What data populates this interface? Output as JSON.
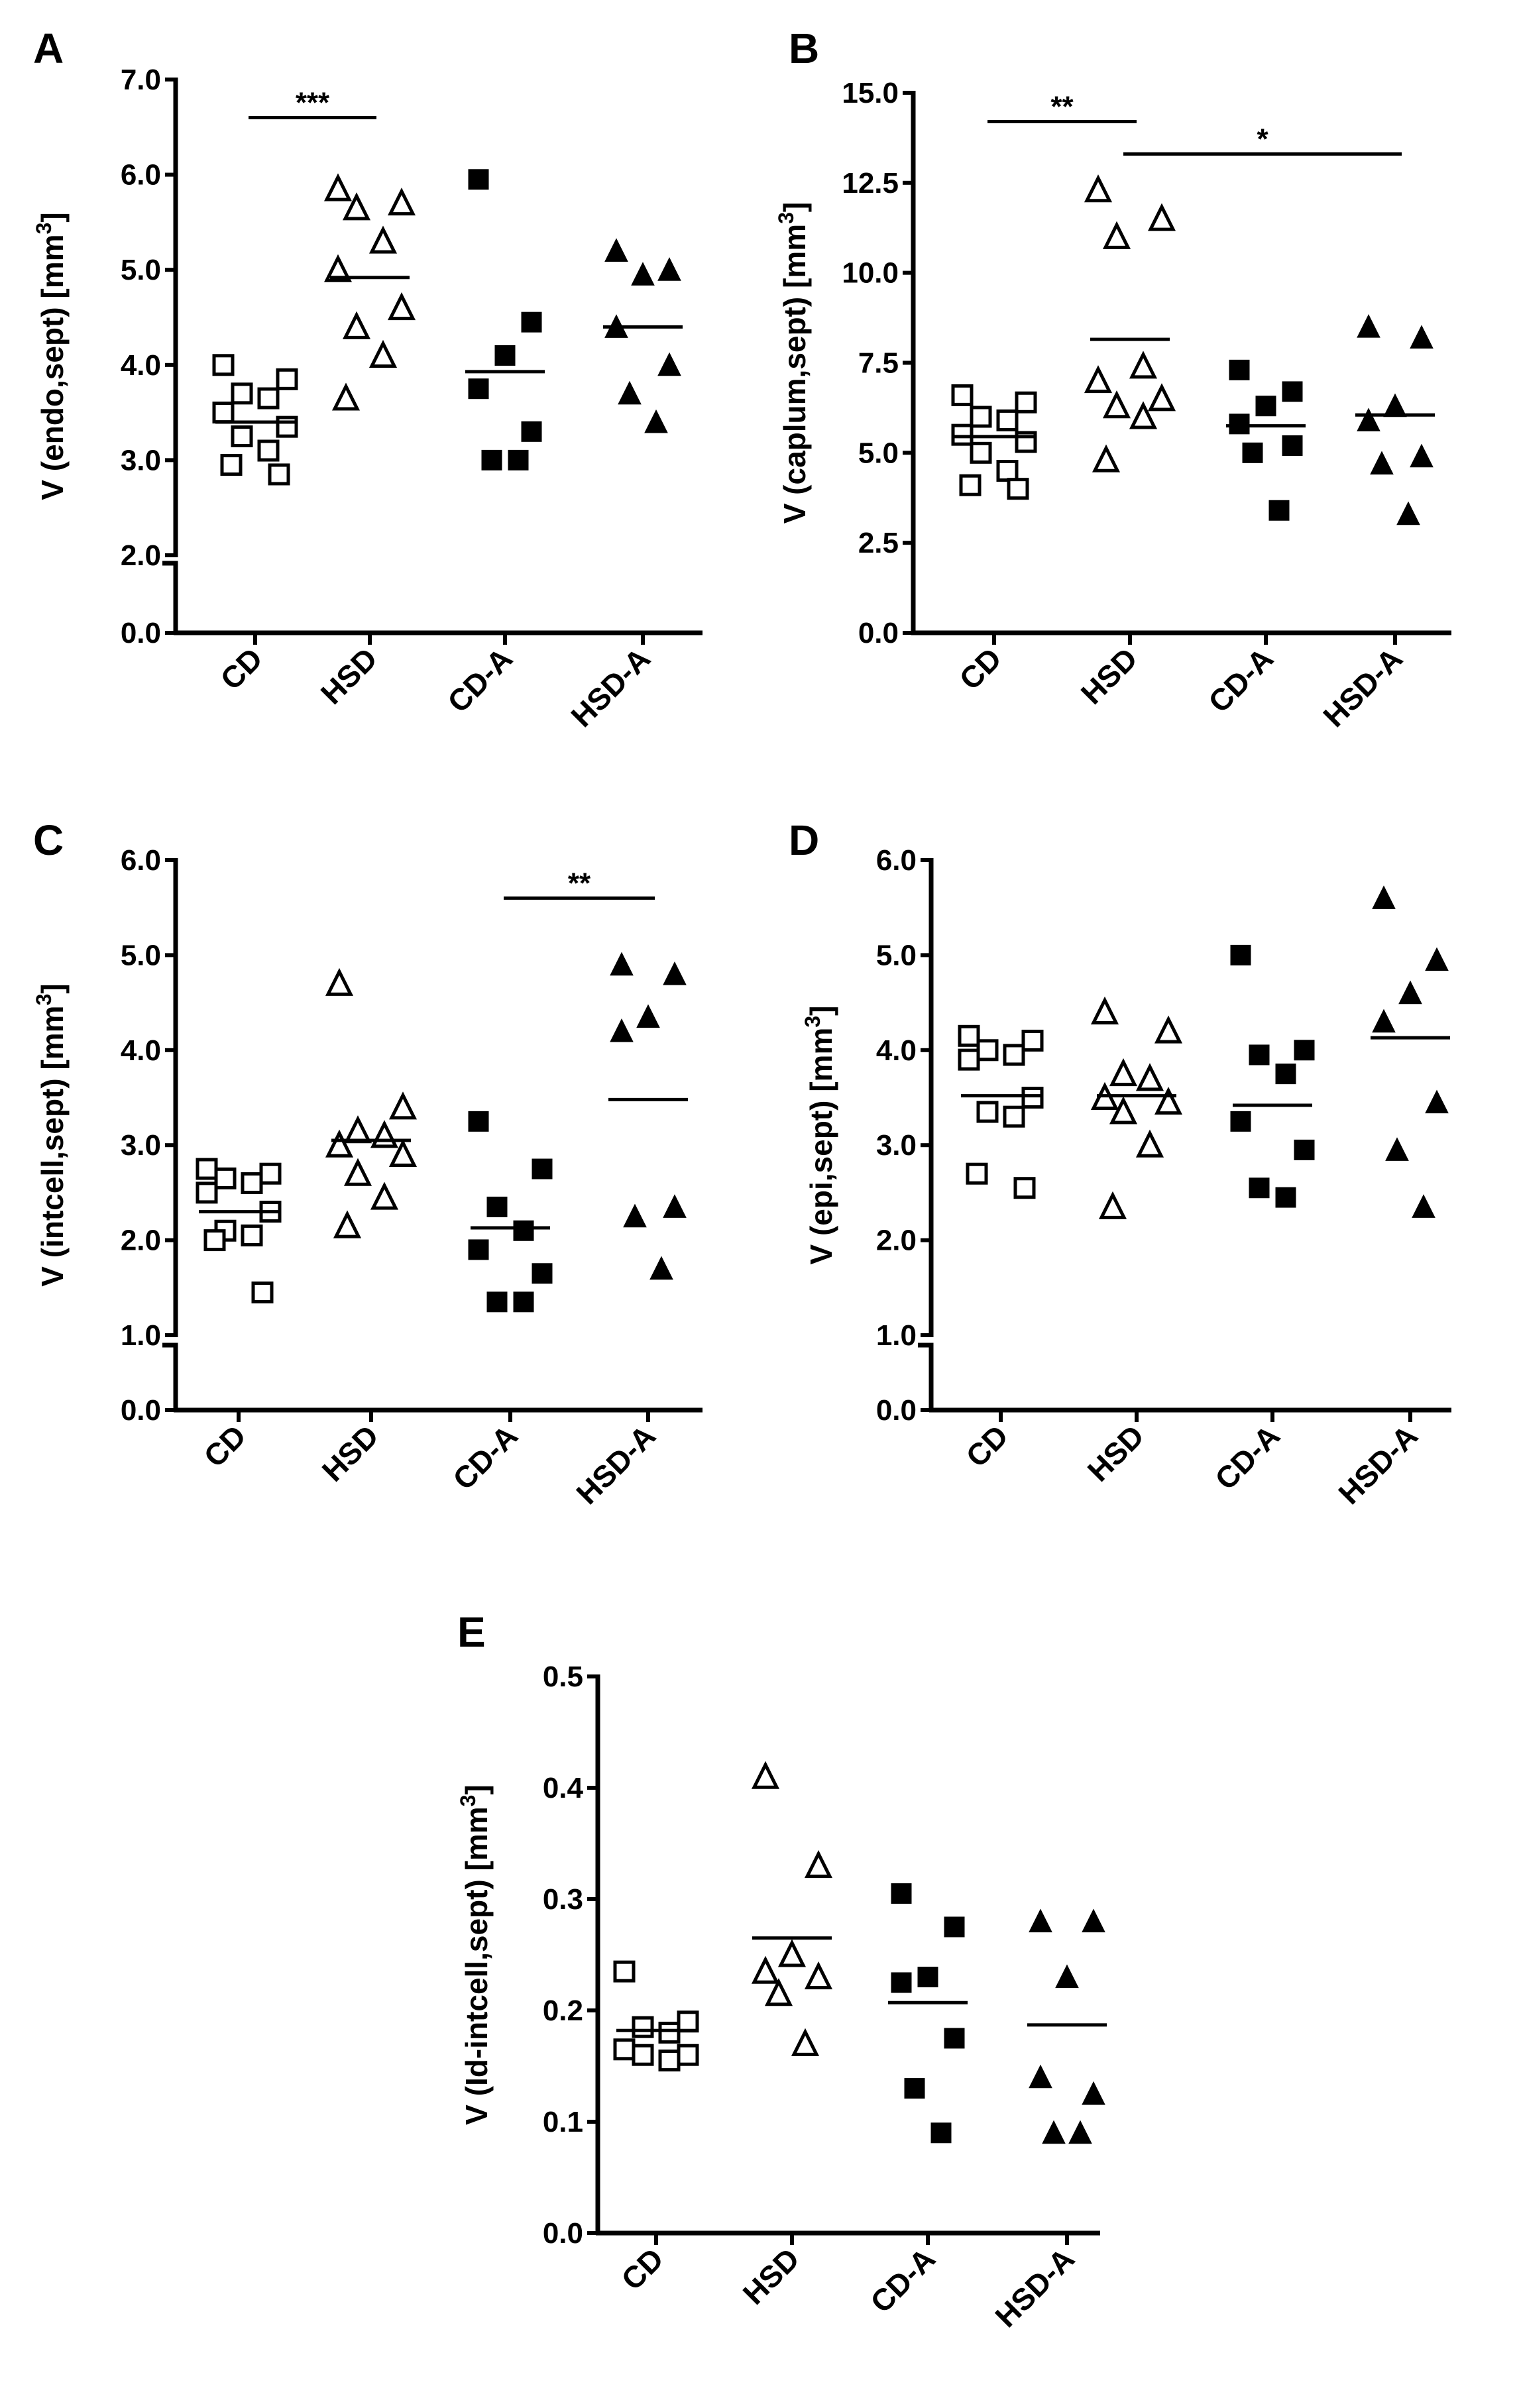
{
  "chart_data": [
    {
      "panel": "A",
      "type": "scatter",
      "ylabel": "V (endo,sept) [mm3]",
      "ylabel_main": "V (endo,sept) [mm",
      "ylabel_sup": "3",
      "ylabel_end": "]",
      "categories": [
        "CD",
        "HSD",
        "CD-A",
        "HSD-A"
      ],
      "markers": [
        "open-square",
        "open-triangle",
        "filled-square",
        "filled-triangle"
      ],
      "yticks": [
        "0.0",
        "2.0",
        "3.0",
        "4.0",
        "5.0",
        "6.0",
        "7.0"
      ],
      "ylim": [
        2.0,
        7.0
      ],
      "axis_break": true,
      "points": [
        [
          4.0,
          3.85,
          3.7,
          3.65,
          3.5,
          3.35,
          3.25,
          3.1,
          2.95,
          2.85
        ],
        [
          5.85,
          5.7,
          5.65,
          5.3,
          5.0,
          4.6,
          4.4,
          4.1,
          3.65
        ],
        [
          5.95,
          4.45,
          4.1,
          3.75,
          3.3,
          3.0,
          3.0
        ],
        [
          5.2,
          5.0,
          4.95,
          4.4,
          4.0,
          3.7,
          3.4
        ]
      ],
      "means": [
        3.4,
        4.92,
        3.93,
        4.4
      ],
      "significance": [
        {
          "from": 0,
          "to": 1,
          "label": "***",
          "y": 6.6
        }
      ]
    },
    {
      "panel": "B",
      "type": "scatter",
      "ylabel": "V (caplum,sept) [mm3]",
      "ylabel_main": "V (caplum,sept) [mm",
      "ylabel_sup": "3",
      "ylabel_end": "]",
      "categories": [
        "CD",
        "HSD",
        "CD-A",
        "HSD-A"
      ],
      "markers": [
        "open-square",
        "open-triangle",
        "filled-square",
        "filled-triangle"
      ],
      "yticks": [
        "0.0",
        "2.5",
        "5.0",
        "7.5",
        "10.0",
        "12.5",
        "15.0"
      ],
      "ylim": [
        0,
        15.0
      ],
      "axis_break": false,
      "points": [
        [
          6.6,
          6.4,
          6.0,
          5.9,
          5.5,
          5.3,
          5.0,
          4.5,
          4.1,
          4.0
        ],
        [
          12.3,
          11.5,
          11.0,
          7.4,
          7.0,
          6.5,
          6.3,
          6.0,
          4.8
        ],
        [
          7.3,
          6.7,
          6.3,
          5.8,
          5.2,
          5.0,
          3.4
        ],
        [
          8.5,
          8.2,
          6.3,
          5.9,
          4.9,
          4.7,
          3.3
        ]
      ],
      "means": [
        5.45,
        8.15,
        5.75,
        6.05
      ],
      "significance": [
        {
          "from": 0,
          "to": 1,
          "label": "**",
          "y": 14.2
        },
        {
          "from": 1,
          "to": 3,
          "label": "*",
          "y": 13.3
        }
      ]
    },
    {
      "panel": "C",
      "type": "scatter",
      "ylabel": "V (intcell,sept) [mm3]",
      "ylabel_main": "V (intcell,sept) [mm",
      "ylabel_sup": "3",
      "ylabel_end": "]",
      "categories": [
        "CD",
        "HSD",
        "CD-A",
        "HSD-A"
      ],
      "markers": [
        "open-square",
        "open-triangle",
        "filled-square",
        "filled-triangle"
      ],
      "yticks": [
        "0.0",
        "1.0",
        "2.0",
        "3.0",
        "4.0",
        "5.0",
        "6.0"
      ],
      "ylim": [
        1.0,
        6.0
      ],
      "axis_break": true,
      "points": [
        [
          2.75,
          2.7,
          2.65,
          2.6,
          2.5,
          2.3,
          2.1,
          2.05,
          2.0,
          1.45
        ],
        [
          4.7,
          3.4,
          3.15,
          3.1,
          3.0,
          2.9,
          2.7,
          2.45,
          2.15
        ],
        [
          3.25,
          2.75,
          2.35,
          2.1,
          1.9,
          1.65,
          1.35,
          1.35
        ],
        [
          4.9,
          4.8,
          4.35,
          4.2,
          2.35,
          2.25,
          1.7
        ]
      ],
      "means": [
        2.3,
        3.05,
        2.13,
        3.48
      ],
      "significance": [
        {
          "from": 2,
          "to": 3,
          "label": "**",
          "y": 5.6
        }
      ]
    },
    {
      "panel": "D",
      "type": "scatter",
      "ylabel": "V (epi,sept) [mm3]",
      "ylabel_main": "V (epi,sept) [mm",
      "ylabel_sup": "3",
      "ylabel_end": "]",
      "categories": [
        "CD",
        "HSD",
        "CD-A",
        "HSD-A"
      ],
      "markers": [
        "open-square",
        "open-triangle",
        "filled-square",
        "filled-triangle"
      ],
      "yticks": [
        "0.0",
        "1.0",
        "2.0",
        "3.0",
        "4.0",
        "5.0",
        "6.0"
      ],
      "ylim": [
        1.0,
        6.0
      ],
      "axis_break": true,
      "points": [
        [
          4.15,
          4.1,
          4.0,
          3.95,
          3.9,
          3.5,
          3.35,
          3.3,
          2.7,
          2.55
        ],
        [
          4.4,
          4.2,
          3.75,
          3.7,
          3.5,
          3.45,
          3.35,
          3.0,
          2.35
        ],
        [
          5.0,
          4.0,
          3.95,
          3.75,
          3.25,
          2.95,
          2.55,
          2.45
        ],
        [
          5.6,
          4.95,
          4.6,
          4.3,
          3.45,
          2.95,
          2.35
        ]
      ],
      "means": [
        3.52,
        3.52,
        3.42,
        4.13
      ],
      "significance": []
    },
    {
      "panel": "E",
      "type": "scatter",
      "ylabel": "V (Id-intcell,sept) [mm3]",
      "ylabel_main": "V (Id-intcell,sept) [mm",
      "ylabel_sup": "3",
      "ylabel_end": "]",
      "categories": [
        "CD",
        "HSD",
        "CD-A",
        "HSD-A"
      ],
      "markers": [
        "open-square",
        "open-triangle",
        "filled-square",
        "filled-triangle"
      ],
      "yticks": [
        "0.0",
        "0.1",
        "0.2",
        "0.3",
        "0.4",
        "0.5"
      ],
      "ylim": [
        0,
        0.5
      ],
      "axis_break": false,
      "points": [
        [
          0.235,
          0.19,
          0.185,
          0.18,
          0.165,
          0.16,
          0.16,
          0.155
        ],
        [
          0.41,
          0.33,
          0.25,
          0.235,
          0.23,
          0.215,
          0.17
        ],
        [
          0.305,
          0.275,
          0.23,
          0.225,
          0.175,
          0.13,
          0.09
        ],
        [
          0.28,
          0.28,
          0.23,
          0.14,
          0.125,
          0.09,
          0.09
        ]
      ],
      "means": [
        0.182,
        0.265,
        0.207,
        0.187
      ],
      "significance": []
    }
  ]
}
